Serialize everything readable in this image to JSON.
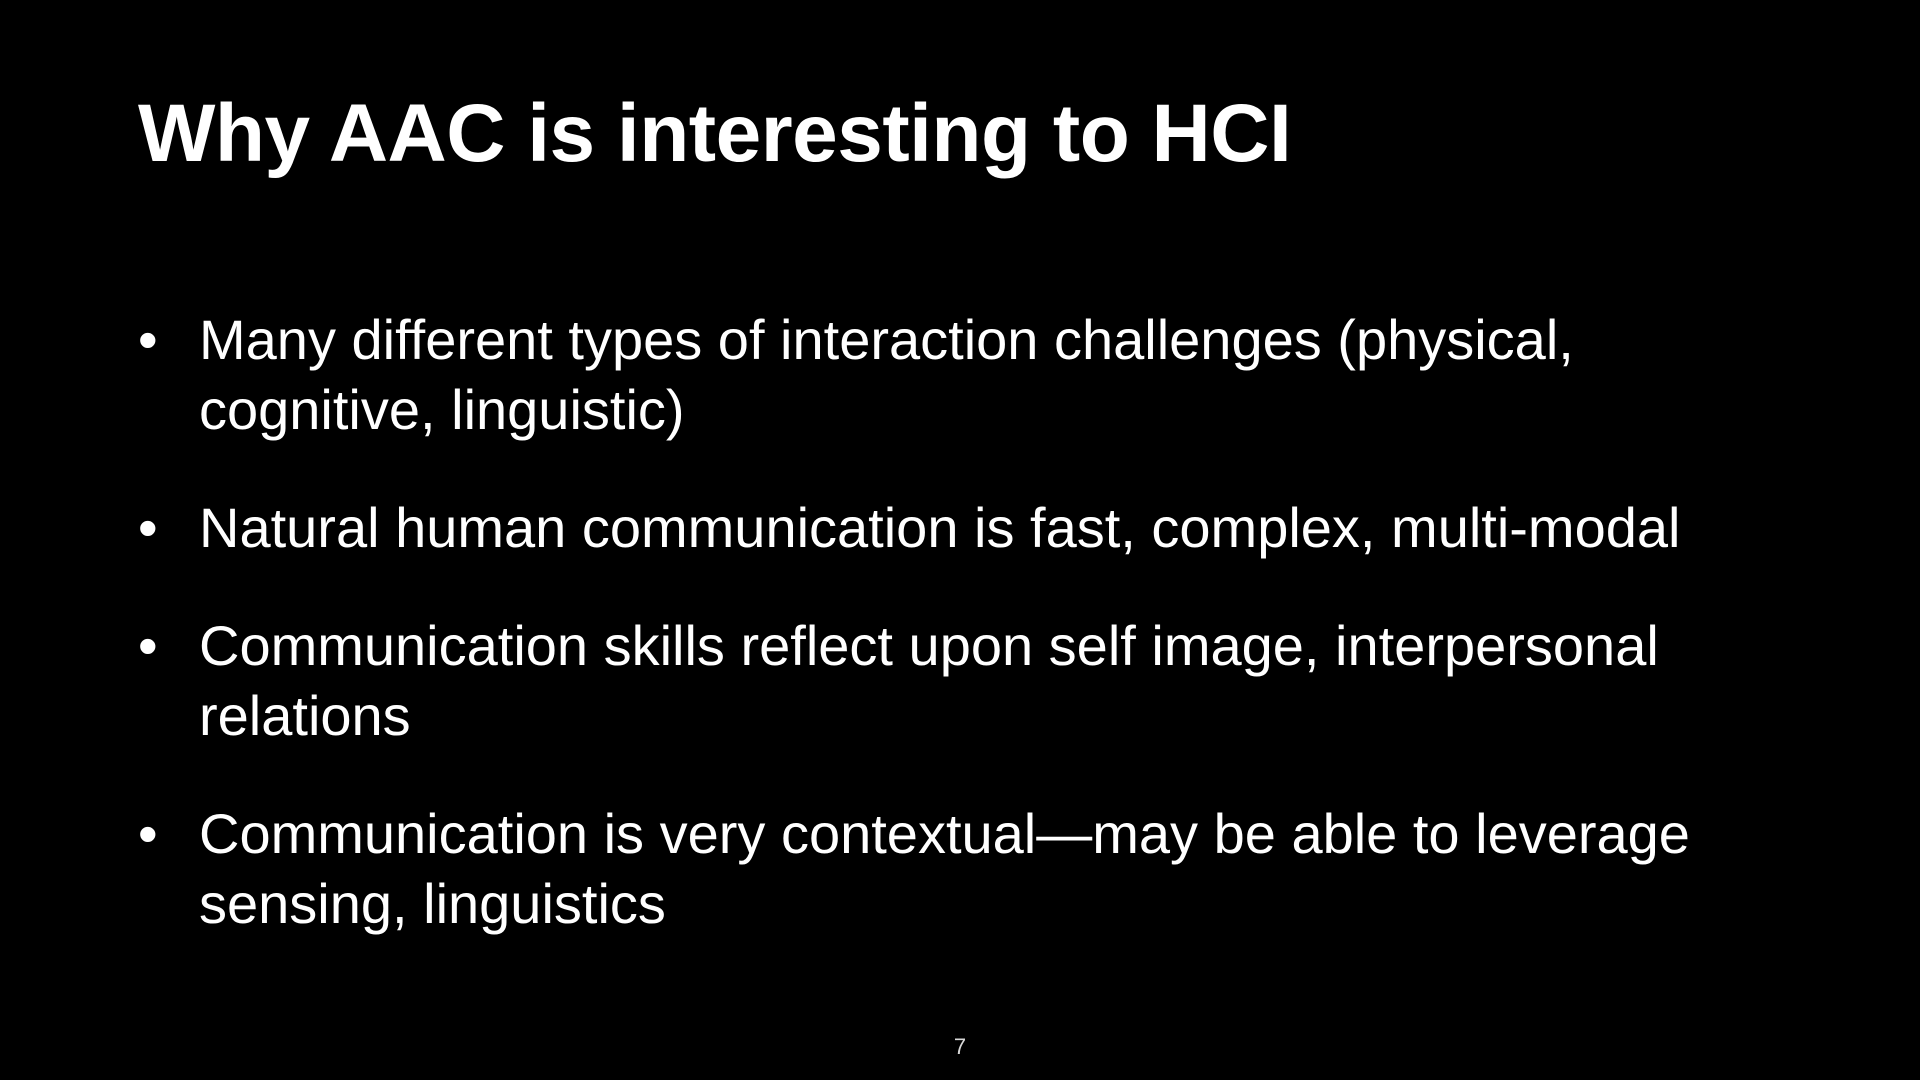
{
  "slide": {
    "title": "Why AAC is interesting to HCI",
    "bullet_symbol": "•",
    "bullets": [
      "Many different types of interaction challenges (physical, cognitive, linguistic)",
      "Natural human communication is fast, complex, multi-modal",
      "Communication skills reflect upon self image, interpersonal relations",
      "Communication is very contextual—may be able to leverage sensing, linguistics"
    ],
    "page_number": "7"
  },
  "colors": {
    "background": "#000000",
    "text": "#ffffff"
  }
}
